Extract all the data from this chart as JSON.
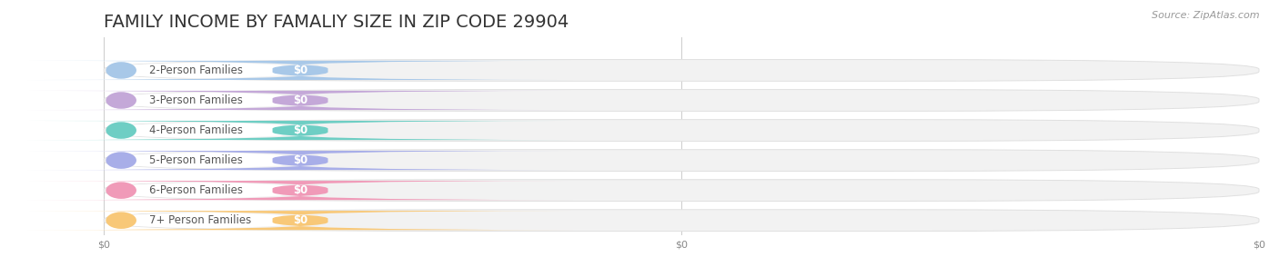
{
  "title": "FAMILY INCOME BY FAMALIY SIZE IN ZIP CODE 29904",
  "source": "Source: ZipAtlas.com",
  "categories": [
    "2-Person Families",
    "3-Person Families",
    "4-Person Families",
    "5-Person Families",
    "6-Person Families",
    "7+ Person Families"
  ],
  "values": [
    0,
    0,
    0,
    0,
    0,
    0
  ],
  "bar_colors": [
    "#a8c8e8",
    "#c4a8d8",
    "#6ecec4",
    "#a8aee8",
    "#f09ab8",
    "#f8c878"
  ],
  "dot_colors": [
    "#88aacc",
    "#a880c0",
    "#48b0a8",
    "#8888cc",
    "#e87098",
    "#e8a848"
  ],
  "bar_bg_color": "#f2f2f2",
  "bar_bg_border": "#e0e0e0",
  "white_inner": "#ffffff",
  "label_color": "#555555",
  "value_label_color": "#ffffff",
  "title_color": "#333333",
  "source_color": "#999999",
  "background_color": "#ffffff",
  "title_fontsize": 14,
  "label_fontsize": 8.5,
  "source_fontsize": 8,
  "xtick_positions": [
    0.0,
    0.5,
    1.0
  ],
  "xtick_labels": [
    "$0",
    "$0",
    "$0"
  ]
}
